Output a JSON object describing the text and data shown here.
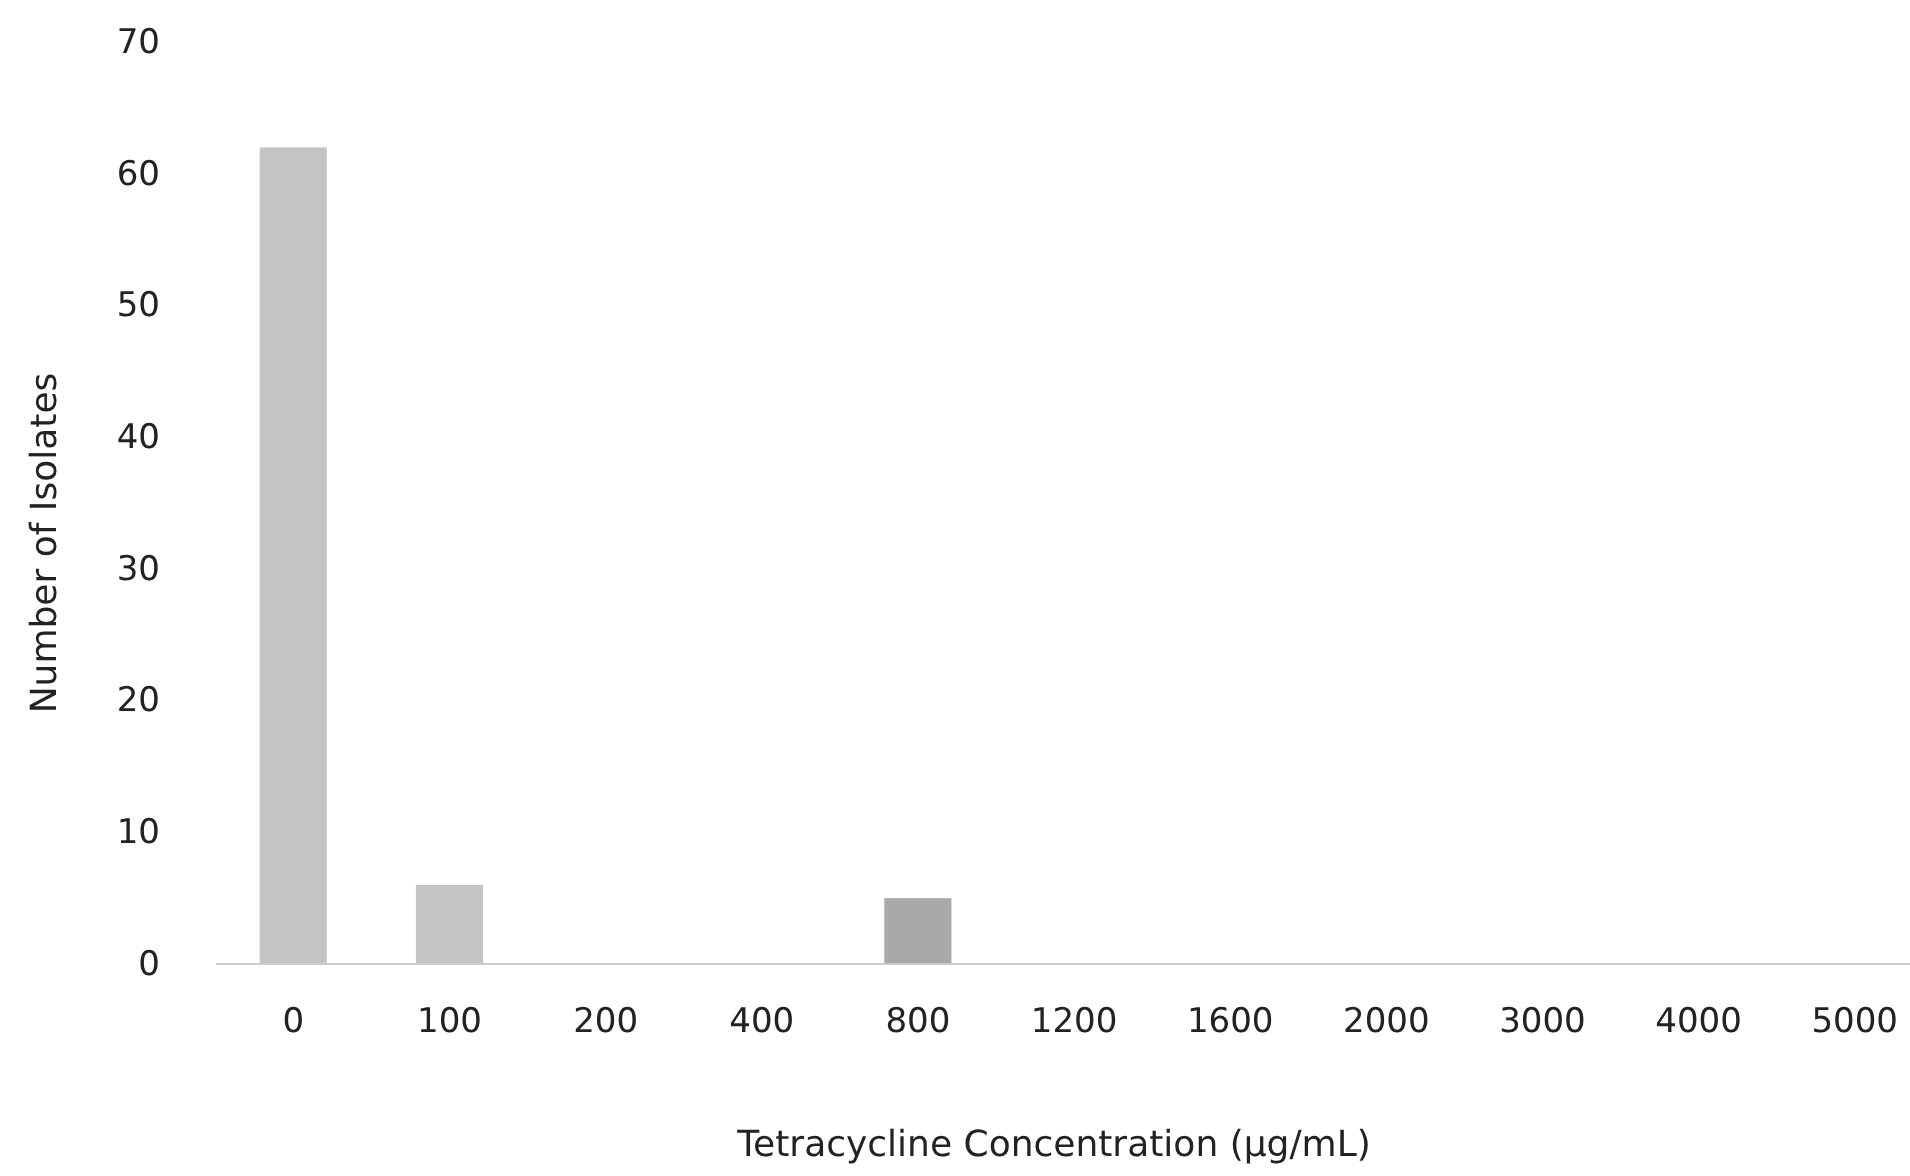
{
  "chart_data": {
    "type": "bar",
    "xlabel": "Tetracycline Concentration (μg/mL)",
    "ylabel": "Number of Isolates",
    "categories": [
      "0",
      "100",
      "200",
      "400",
      "800",
      "1200",
      "1600",
      "2000",
      "3000",
      "4000",
      "5000"
    ],
    "values": [
      62,
      6,
      0,
      0,
      5,
      0,
      0,
      0,
      0,
      0,
      0
    ],
    "colors": [
      "#c4c4c4",
      "#c4c4c4",
      "#c4c4c4",
      "#c4c4c4",
      "#a9a9a9",
      "#c4c4c4",
      "#c4c4c4",
      "#c4c4c4",
      "#c4c4c4",
      "#c4c4c4",
      "#c4c4c4"
    ],
    "ylim": [
      0,
      70
    ],
    "yticks": [
      0,
      10,
      20,
      30,
      40,
      50,
      60,
      70
    ],
    "grid": false
  }
}
